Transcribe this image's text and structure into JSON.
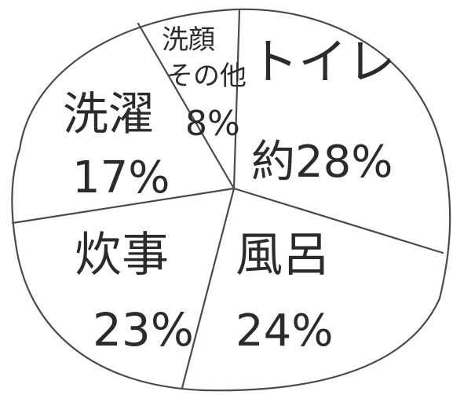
{
  "chart_data": {
    "type": "pie",
    "title": "",
    "slices": [
      {
        "label": "トイレ",
        "prefix": "約",
        "value": 28,
        "value_text": "約28%"
      },
      {
        "label": "風呂",
        "value": 24,
        "value_text": "24%"
      },
      {
        "label": "炊事",
        "value": 23,
        "value_text": "23%"
      },
      {
        "label": "洗濯",
        "value": 17,
        "value_text": "17%"
      },
      {
        "label": "洗顔その他",
        "label_lines": [
          "洗顔",
          "その他"
        ],
        "value": 8,
        "value_text": "8%"
      }
    ],
    "style": {
      "line_color": "#4a4a4a",
      "text_color": "#2b2b2b",
      "background": "#ffffff"
    }
  }
}
